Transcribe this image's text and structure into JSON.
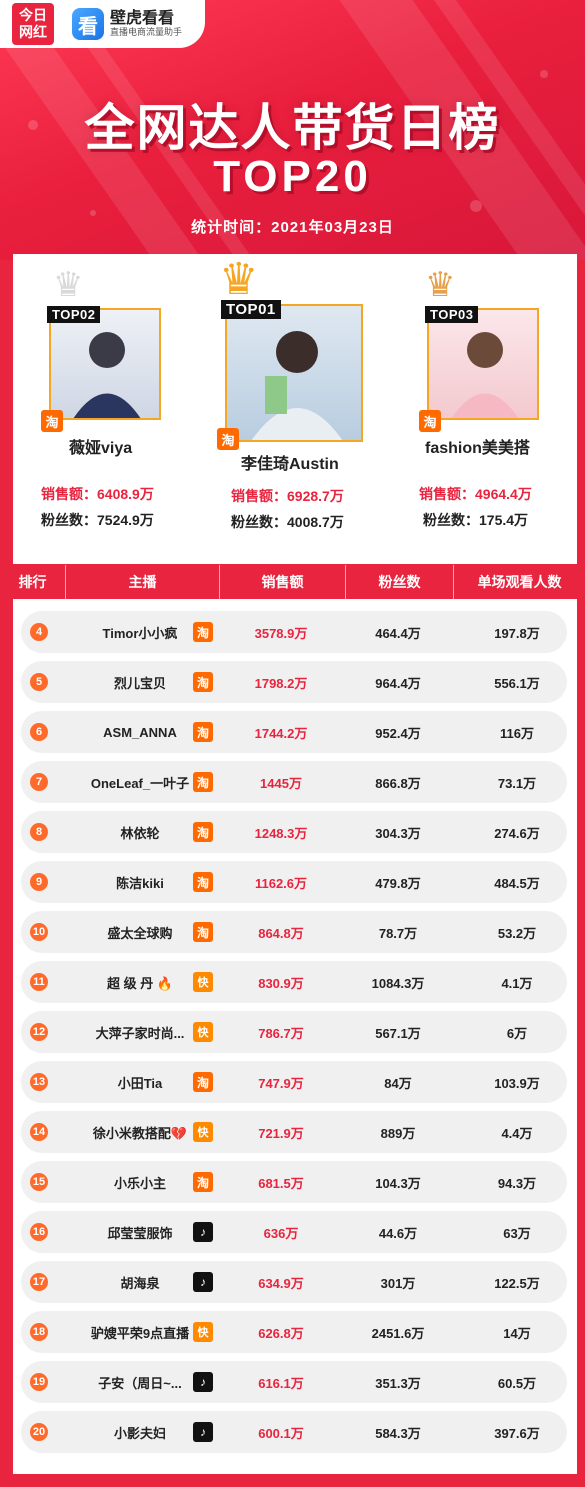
{
  "brand": {
    "logo_line1": "今日",
    "logo_line2": "网红",
    "app_icon": "看",
    "app_name": "壁虎看看",
    "app_slogan": "直播电商流量助手"
  },
  "header": {
    "title": "全网达人带货日榜",
    "subtitle": "TOP20",
    "date_label": "统计时间：2021年03月23日"
  },
  "colors": {
    "primary": "#e8243f",
    "taobao": "#ff6a00",
    "kuaishou": "#ff8a00",
    "douyin": "#111111",
    "gold": "#f5a623"
  },
  "podium": {
    "sales_label": "销售额：",
    "fans_label": "粉丝数：",
    "first": {
      "tag": "TOP01",
      "name": "李佳琦Austin",
      "platform_icon": "淘",
      "sales": "6928.7万",
      "fans": "4008.7万"
    },
    "second": {
      "tag": "TOP02",
      "name": "薇娅viya",
      "platform_icon": "淘",
      "sales": "6408.9万",
      "fans": "7524.9万"
    },
    "third": {
      "tag": "TOP03",
      "name": "fashion美美搭",
      "platform_icon": "淘",
      "sales": "4964.4万",
      "fans": "175.4万"
    }
  },
  "table": {
    "headers": [
      "排行",
      "主播",
      "销售额",
      "粉丝数",
      "单场观看人数"
    ],
    "rows": [
      {
        "rank": "4",
        "name": "Timor小小疯",
        "platform": "taobao",
        "platform_icon": "淘",
        "sales": "3578.9万",
        "fans": "464.4万",
        "views": "197.8万"
      },
      {
        "rank": "5",
        "name": "烈儿宝贝",
        "platform": "taobao",
        "platform_icon": "淘",
        "sales": "1798.2万",
        "fans": "964.4万",
        "views": "556.1万"
      },
      {
        "rank": "6",
        "name": "ASM_ANNA",
        "platform": "taobao",
        "platform_icon": "淘",
        "sales": "1744.2万",
        "fans": "952.4万",
        "views": "116万"
      },
      {
        "rank": "7",
        "name": "OneLeaf_一叶子",
        "platform": "taobao",
        "platform_icon": "淘",
        "sales": "1445万",
        "fans": "866.8万",
        "views": "73.1万"
      },
      {
        "rank": "8",
        "name": "林依轮",
        "platform": "taobao",
        "platform_icon": "淘",
        "sales": "1248.3万",
        "fans": "304.3万",
        "views": "274.6万"
      },
      {
        "rank": "9",
        "name": "陈洁kiki",
        "platform": "taobao",
        "platform_icon": "淘",
        "sales": "1162.6万",
        "fans": "479.8万",
        "views": "484.5万"
      },
      {
        "rank": "10",
        "name": "盛太全球购",
        "platform": "taobao",
        "platform_icon": "淘",
        "sales": "864.8万",
        "fans": "78.7万",
        "views": "53.2万"
      },
      {
        "rank": "11",
        "name": "超 级 丹 🔥",
        "platform": "kuaishou",
        "platform_icon": "快",
        "sales": "830.9万",
        "fans": "1084.3万",
        "views": "4.1万"
      },
      {
        "rank": "12",
        "name": "大萍子家时尚...",
        "platform": "kuaishou",
        "platform_icon": "快",
        "sales": "786.7万",
        "fans": "567.1万",
        "views": "6万"
      },
      {
        "rank": "13",
        "name": "小田Tia",
        "platform": "taobao",
        "platform_icon": "淘",
        "sales": "747.9万",
        "fans": "84万",
        "views": "103.9万"
      },
      {
        "rank": "14",
        "name": "徐小米教搭配💔",
        "platform": "kuaishou",
        "platform_icon": "快",
        "sales": "721.9万",
        "fans": "889万",
        "views": "4.4万"
      },
      {
        "rank": "15",
        "name": "小乐小主",
        "platform": "taobao",
        "platform_icon": "淘",
        "sales": "681.5万",
        "fans": "104.3万",
        "views": "94.3万"
      },
      {
        "rank": "16",
        "name": "邱莹莹服饰",
        "platform": "douyin",
        "platform_icon": "♪",
        "sales": "636万",
        "fans": "44.6万",
        "views": "63万"
      },
      {
        "rank": "17",
        "name": "胡海泉",
        "platform": "douyin",
        "platform_icon": "♪",
        "sales": "634.9万",
        "fans": "301万",
        "views": "122.5万"
      },
      {
        "rank": "18",
        "name": "驴嫂平荣9点直播",
        "platform": "kuaishou",
        "platform_icon": "快",
        "sales": "626.8万",
        "fans": "2451.6万",
        "views": "14万"
      },
      {
        "rank": "19",
        "name": "子安（周日~...",
        "platform": "douyin",
        "platform_icon": "♪",
        "sales": "616.1万",
        "fans": "351.3万",
        "views": "60.5万"
      },
      {
        "rank": "20",
        "name": "小影夫妇",
        "platform": "douyin",
        "platform_icon": "♪",
        "sales": "600.1万",
        "fans": "584.3万",
        "views": "397.6万"
      }
    ]
  }
}
